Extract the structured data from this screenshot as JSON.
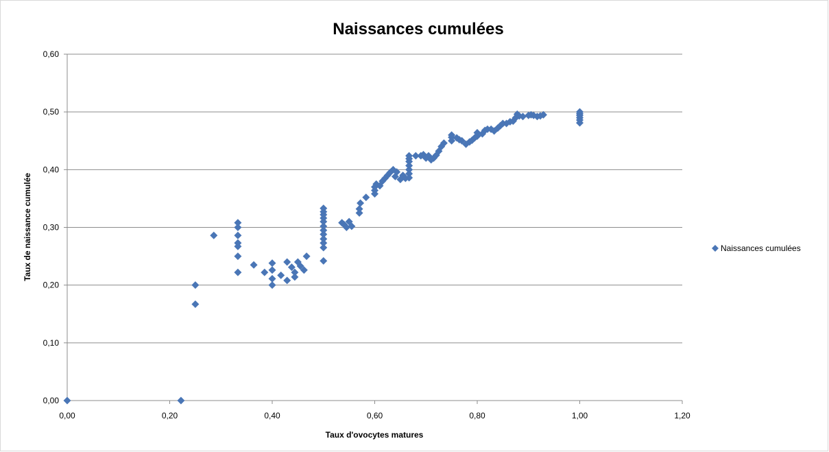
{
  "chart_data": {
    "type": "scatter",
    "title": "Naissances cumulées",
    "xlabel": "Taux d'ovocytes matures",
    "ylabel": "Taux de naissance cumulée",
    "xlim": [
      0,
      1.2
    ],
    "ylim": [
      0,
      0.6
    ],
    "x_ticks": [
      "0,00",
      "0,20",
      "0,40",
      "0,60",
      "0,80",
      "1,00",
      "1,20"
    ],
    "y_ticks": [
      "0,00",
      "0,10",
      "0,20",
      "0,30",
      "0,40",
      "0,50",
      "0,60"
    ],
    "grid": "horizontal",
    "legend_position": "right",
    "series": [
      {
        "name": "Naissances cumulées",
        "color": "#4a76b6",
        "marker": "diamond",
        "points": [
          [
            0.0,
            0.0
          ],
          [
            0.222,
            0.0
          ],
          [
            0.25,
            0.167
          ],
          [
            0.25,
            0.2
          ],
          [
            0.286,
            0.286
          ],
          [
            0.333,
            0.222
          ],
          [
            0.333,
            0.25
          ],
          [
            0.333,
            0.267
          ],
          [
            0.333,
            0.273
          ],
          [
            0.333,
            0.286
          ],
          [
            0.333,
            0.3
          ],
          [
            0.333,
            0.308
          ],
          [
            0.364,
            0.235
          ],
          [
            0.385,
            0.222
          ],
          [
            0.4,
            0.2
          ],
          [
            0.4,
            0.211
          ],
          [
            0.4,
            0.226
          ],
          [
            0.4,
            0.238
          ],
          [
            0.417,
            0.217
          ],
          [
            0.429,
            0.208
          ],
          [
            0.429,
            0.24
          ],
          [
            0.438,
            0.231
          ],
          [
            0.444,
            0.222
          ],
          [
            0.444,
            0.214
          ],
          [
            0.45,
            0.24
          ],
          [
            0.455,
            0.233
          ],
          [
            0.462,
            0.226
          ],
          [
            0.467,
            0.25
          ],
          [
            0.5,
            0.242
          ],
          [
            0.5,
            0.265
          ],
          [
            0.5,
            0.273
          ],
          [
            0.5,
            0.28
          ],
          [
            0.5,
            0.288
          ],
          [
            0.5,
            0.295
          ],
          [
            0.5,
            0.302
          ],
          [
            0.5,
            0.31
          ],
          [
            0.5,
            0.316
          ],
          [
            0.5,
            0.322
          ],
          [
            0.5,
            0.327
          ],
          [
            0.5,
            0.333
          ],
          [
            0.536,
            0.308
          ],
          [
            0.54,
            0.305
          ],
          [
            0.545,
            0.3
          ],
          [
            0.55,
            0.31
          ],
          [
            0.555,
            0.302
          ],
          [
            0.57,
            0.325
          ],
          [
            0.57,
            0.332
          ],
          [
            0.572,
            0.342
          ],
          [
            0.583,
            0.352
          ],
          [
            0.6,
            0.358
          ],
          [
            0.6,
            0.364
          ],
          [
            0.6,
            0.37
          ],
          [
            0.603,
            0.375
          ],
          [
            0.61,
            0.372
          ],
          [
            0.615,
            0.38
          ],
          [
            0.62,
            0.385
          ],
          [
            0.625,
            0.39
          ],
          [
            0.63,
            0.395
          ],
          [
            0.636,
            0.4
          ],
          [
            0.64,
            0.388
          ],
          [
            0.643,
            0.396
          ],
          [
            0.65,
            0.383
          ],
          [
            0.655,
            0.39
          ],
          [
            0.66,
            0.385
          ],
          [
            0.667,
            0.386
          ],
          [
            0.667,
            0.393
          ],
          [
            0.667,
            0.4
          ],
          [
            0.667,
            0.407
          ],
          [
            0.667,
            0.414
          ],
          [
            0.667,
            0.419
          ],
          [
            0.667,
            0.424
          ],
          [
            0.68,
            0.424
          ],
          [
            0.69,
            0.424
          ],
          [
            0.695,
            0.426
          ],
          [
            0.7,
            0.42
          ],
          [
            0.705,
            0.424
          ],
          [
            0.71,
            0.417
          ],
          [
            0.715,
            0.42
          ],
          [
            0.72,
            0.425
          ],
          [
            0.725,
            0.432
          ],
          [
            0.73,
            0.44
          ],
          [
            0.735,
            0.446
          ],
          [
            0.75,
            0.45
          ],
          [
            0.75,
            0.456
          ],
          [
            0.75,
            0.46
          ],
          [
            0.76,
            0.455
          ],
          [
            0.765,
            0.452
          ],
          [
            0.77,
            0.45
          ],
          [
            0.778,
            0.444
          ],
          [
            0.785,
            0.448
          ],
          [
            0.79,
            0.451
          ],
          [
            0.795,
            0.455
          ],
          [
            0.8,
            0.458
          ],
          [
            0.8,
            0.464
          ],
          [
            0.81,
            0.462
          ],
          [
            0.815,
            0.468
          ],
          [
            0.82,
            0.47
          ],
          [
            0.827,
            0.47
          ],
          [
            0.833,
            0.467
          ],
          [
            0.84,
            0.472
          ],
          [
            0.845,
            0.476
          ],
          [
            0.85,
            0.48
          ],
          [
            0.857,
            0.48
          ],
          [
            0.864,
            0.483
          ],
          [
            0.87,
            0.484
          ],
          [
            0.875,
            0.49
          ],
          [
            0.878,
            0.496
          ],
          [
            0.882,
            0.493
          ],
          [
            0.889,
            0.492
          ],
          [
            0.9,
            0.494
          ],
          [
            0.905,
            0.495
          ],
          [
            0.91,
            0.494
          ],
          [
            0.917,
            0.492
          ],
          [
            0.923,
            0.493
          ],
          [
            0.929,
            0.495
          ],
          [
            1.0,
            0.481
          ],
          [
            1.0,
            0.486
          ],
          [
            1.0,
            0.49
          ],
          [
            1.0,
            0.494
          ],
          [
            1.0,
            0.497
          ],
          [
            1.0,
            0.5
          ]
        ]
      }
    ]
  }
}
